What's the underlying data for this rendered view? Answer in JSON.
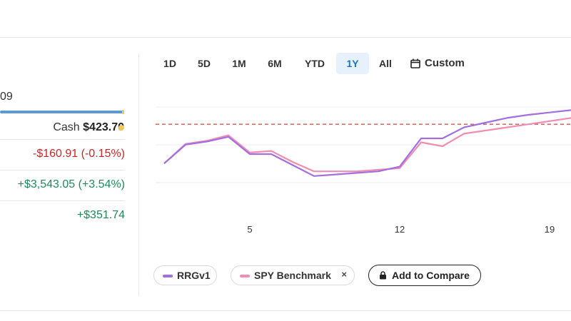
{
  "account": {
    "value_fragment": "09",
    "cash_label": "Cash",
    "cash_amount": "$423.70",
    "balance_cash_fraction": 0.004
  },
  "summary_rows": [
    {
      "value": "-$160.91 (-0.15%)"
    },
    {
      "value": "+$3,543.05 (+3.54%)"
    },
    {
      "value": "+$351.74"
    }
  ],
  "range_tabs": [
    {
      "label": "1D"
    },
    {
      "label": "5D"
    },
    {
      "label": "1M"
    },
    {
      "label": "6M"
    },
    {
      "label": "YTD"
    },
    {
      "label": "1Y",
      "active": true
    },
    {
      "label": "All"
    }
  ],
  "custom_label": "Custom",
  "chart_data": {
    "type": "line",
    "x": [
      1,
      2,
      3,
      4,
      5,
      6,
      7,
      8,
      9,
      10,
      11,
      12,
      13,
      14,
      15,
      16,
      17,
      18,
      19,
      20
    ],
    "xticks": [
      {
        "x": 5,
        "label": "5"
      },
      {
        "x": 12,
        "label": "12"
      },
      {
        "x": 19,
        "label": "19"
      }
    ],
    "ylim": [
      0,
      100
    ],
    "reference_line": 78,
    "grid": true,
    "series": [
      {
        "name": "RRGv1",
        "color": "#a26ee0",
        "values": [
          28,
          52,
          56,
          62,
          40,
          40,
          26,
          12,
          14,
          16,
          18,
          24,
          60,
          60,
          74,
          80,
          86,
          90,
          93,
          96
        ]
      },
      {
        "name": "SPY Benchmark",
        "color": "#f08db1",
        "values": [
          28,
          53,
          57,
          64,
          42,
          44,
          30,
          18,
          18,
          18,
          20,
          22,
          55,
          50,
          66,
          70,
          74,
          78,
          82,
          86
        ]
      }
    ]
  },
  "legend": {
    "series1_label": "RRGv1",
    "series2_label": "SPY Benchmark",
    "remove_symbol": "×",
    "add_compare_label": "Add to Compare"
  },
  "colors": {
    "accent": "#1f73c4",
    "negative": "#c62828",
    "positive": "#1e8a5a",
    "cash_dot": "#f3c85b",
    "reference_line": "#d9534f"
  }
}
